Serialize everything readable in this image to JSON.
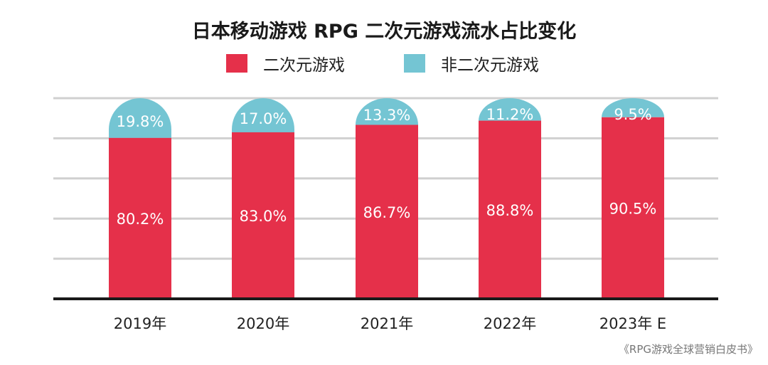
{
  "chart_data": {
    "type": "bar",
    "stacked": true,
    "title": "日本移动游戏 RPG 二次元游戏流水占比变化",
    "categories": [
      "2019年",
      "2020年",
      "2021年",
      "2022年",
      "2023年 E"
    ],
    "series": [
      {
        "name": "二次元游戏",
        "values": [
          80.2,
          83.0,
          86.7,
          88.8,
          90.5
        ],
        "labels": [
          "80.2%",
          "83.0%",
          "86.7%",
          "88.8%",
          "90.5%"
        ],
        "color": "#e5304a"
      },
      {
        "name": "非二次元游戏",
        "values": [
          19.8,
          17.0,
          13.3,
          11.2,
          9.5
        ],
        "labels": [
          "19.8%",
          "17.0%",
          "13.3%",
          "11.2%",
          "9.5%"
        ],
        "color": "#74c5d3"
      }
    ],
    "ylim": [
      0,
      100
    ],
    "grid": true,
    "legend": "top",
    "source": "《RPG游戏全球营销白皮书》"
  }
}
